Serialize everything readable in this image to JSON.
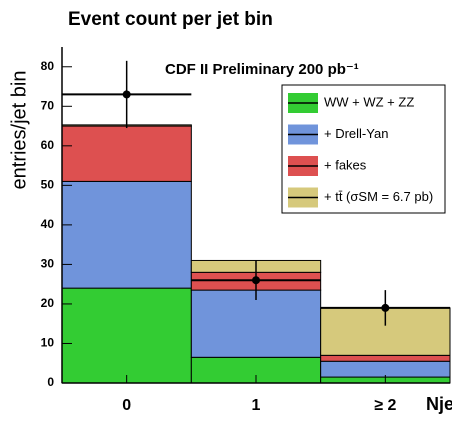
{
  "chart_data": {
    "type": "stacked_histogram",
    "title": "Event count per jet bin",
    "ylabel": "entries/jet bin",
    "xlabel": "Njet",
    "annotation": "CDF II Preliminary 200 pb⁻¹",
    "categories": [
      "0",
      "1",
      "≥ 2"
    ],
    "series": [
      {
        "name": "WW + WZ + ZZ",
        "color": "#33cc33",
        "values": [
          24,
          6.5,
          1.5
        ]
      },
      {
        "name": "+ Drell-Yan",
        "color": "#7094db",
        "values": [
          27,
          17,
          4
        ]
      },
      {
        "name": "+ fakes",
        "color": "#dd5050",
        "values": [
          14,
          4.5,
          1.5
        ]
      },
      {
        "name": "+ tt̄ (σSM = 6.7 pb)",
        "color": "#d6c97c",
        "values": [
          0.3,
          3,
          12
        ]
      }
    ],
    "data": {
      "values": [
        73,
        26,
        19
      ],
      "errors": [
        8.5,
        5,
        4.5
      ]
    },
    "ylim": [
      0,
      85
    ],
    "yticks": [
      0,
      10,
      20,
      30,
      40,
      50,
      60,
      70,
      80
    ]
  }
}
